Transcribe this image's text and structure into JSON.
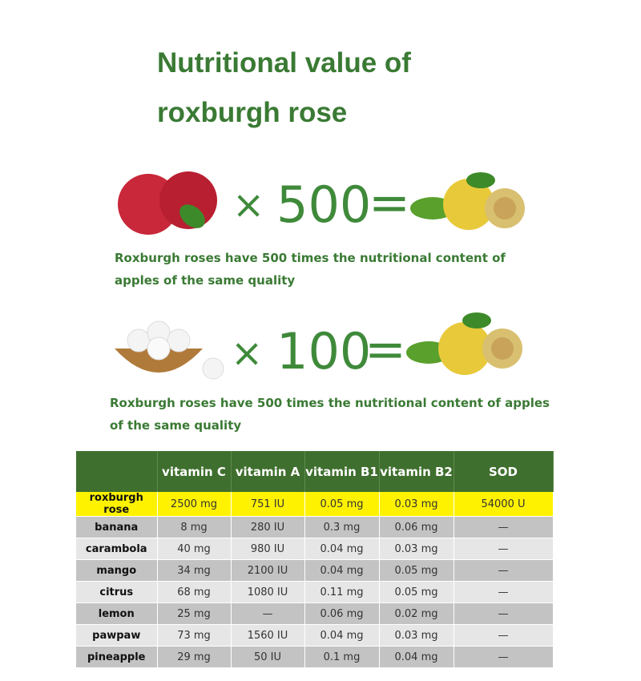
{
  "title": "Nutritional value of roxburgh rose",
  "comparisons": [
    {
      "item": "apple",
      "icon": "apple-icon",
      "multiplier": "500",
      "caption": "Roxburgh roses have 500 times the nutritional content of apples of the same quality"
    },
    {
      "item": "eggs",
      "icon": "egg-basket-icon",
      "multiplier": "100",
      "caption": "Roxburgh roses have 500 times the nutritional content of apples of the same quality"
    }
  ],
  "symbols": {
    "times": "×",
    "equals": "="
  },
  "table": {
    "headers": [
      "",
      "vitamin C",
      "vitamin A",
      "vitamin B1",
      "vitamin B2",
      "SOD"
    ],
    "rows": [
      [
        "roxburgh rose",
        "2500 mg",
        "751 IU",
        "0.05 mg",
        "0.03 mg",
        "54000 U"
      ],
      [
        "banana",
        "8 mg",
        "280 IU",
        "0.3 mg",
        "0.06 mg",
        "—"
      ],
      [
        "carambola",
        "40 mg",
        "980 IU",
        "0.04 mg",
        "0.03 mg",
        "—"
      ],
      [
        "mango",
        "34 mg",
        "2100 IU",
        "0.04 mg",
        "0.05 mg",
        "—"
      ],
      [
        "citrus",
        "68 mg",
        "1080 IU",
        "0.11 mg",
        "0.05 mg",
        "—"
      ],
      [
        "lemon",
        "25 mg",
        "—",
        "0.06 mg",
        "0.02 mg",
        "—"
      ],
      [
        "pawpaw",
        "73 mg",
        "1560 IU",
        "0.04 mg",
        "0.03 mg",
        "—"
      ],
      [
        "pineapple",
        "29 mg",
        "50 IU",
        "0.1 mg",
        "0.04 mg",
        "—"
      ]
    ],
    "colors": {
      "header": "#3f6f2e",
      "highlight": "#fff200",
      "dark_row": "#c3c3c3",
      "light_row": "#e6e6e6"
    }
  }
}
